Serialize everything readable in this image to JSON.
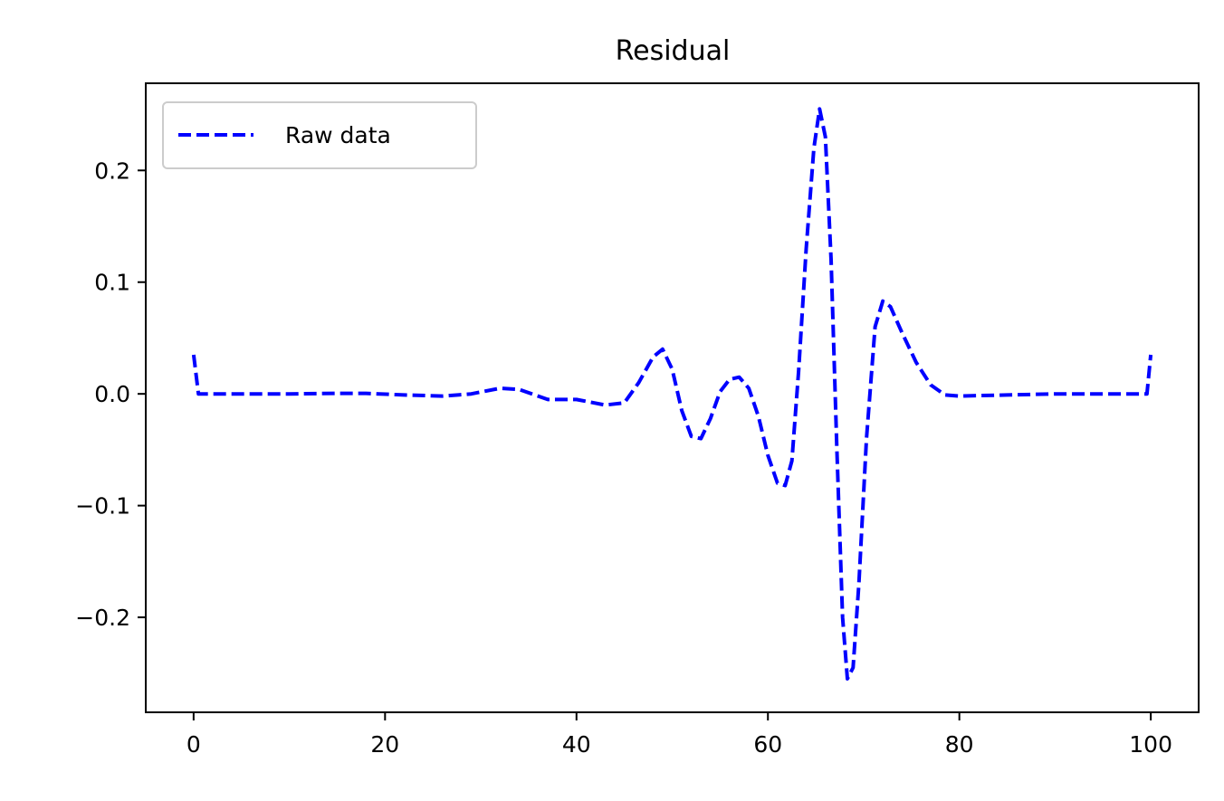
{
  "chart_data": {
    "type": "line",
    "title": "Residual",
    "xlabel": "",
    "ylabel": "",
    "xlim": [
      -5,
      105
    ],
    "ylim": [
      -0.285,
      0.278
    ],
    "xticks": [
      0,
      20,
      40,
      60,
      80,
      100
    ],
    "xtick_labels": [
      "0",
      "20",
      "40",
      "60",
      "80",
      "100"
    ],
    "yticks": [
      -0.2,
      -0.1,
      0.0,
      0.1,
      0.2
    ],
    "ytick_labels": [
      "−0.2",
      "−0.1",
      "0.0",
      "0.1",
      "0.2"
    ],
    "grid": false,
    "legend_position": "upper-left",
    "series": [
      {
        "name": "Raw data",
        "color": "#0000ff",
        "line_style": "dashed",
        "points": [
          [
            0.0,
            0.035
          ],
          [
            0.5,
            0.0
          ],
          [
            5,
            0.0
          ],
          [
            10,
            0.0
          ],
          [
            15,
            0.0005
          ],
          [
            18,
            0.0005
          ],
          [
            22,
            -0.001
          ],
          [
            26,
            -0.002
          ],
          [
            29,
            0.0
          ],
          [
            32,
            0.005
          ],
          [
            34,
            0.004
          ],
          [
            37,
            -0.005
          ],
          [
            40,
            -0.005
          ],
          [
            43,
            -0.01
          ],
          [
            45,
            -0.008
          ],
          [
            46.5,
            0.01
          ],
          [
            48,
            0.033
          ],
          [
            49,
            0.04
          ],
          [
            50,
            0.022
          ],
          [
            51,
            -0.015
          ],
          [
            52,
            -0.038
          ],
          [
            53,
            -0.04
          ],
          [
            54,
            -0.022
          ],
          [
            55,
            0.002
          ],
          [
            56,
            0.013
          ],
          [
            57,
            0.015
          ],
          [
            58,
            0.005
          ],
          [
            59,
            -0.02
          ],
          [
            60,
            -0.055
          ],
          [
            61,
            -0.08
          ],
          [
            61.8,
            -0.082
          ],
          [
            62.5,
            -0.06
          ],
          [
            63.2,
            0.02
          ],
          [
            64,
            0.13
          ],
          [
            64.8,
            0.22
          ],
          [
            65.4,
            0.255
          ],
          [
            66,
            0.23
          ],
          [
            66.6,
            0.12
          ],
          [
            67.2,
            -0.05
          ],
          [
            67.8,
            -0.2
          ],
          [
            68.3,
            -0.255
          ],
          [
            68.9,
            -0.245
          ],
          [
            69.5,
            -0.17
          ],
          [
            70.3,
            -0.04
          ],
          [
            71.2,
            0.06
          ],
          [
            72,
            0.083
          ],
          [
            72.8,
            0.078
          ],
          [
            74,
            0.055
          ],
          [
            75.5,
            0.028
          ],
          [
            77,
            0.008
          ],
          [
            78.5,
            -0.001
          ],
          [
            80,
            -0.002
          ],
          [
            85,
            -0.001
          ],
          [
            90,
            0.0
          ],
          [
            95,
            0.0
          ],
          [
            99.6,
            0.0
          ],
          [
            100,
            0.035
          ]
        ]
      }
    ]
  }
}
